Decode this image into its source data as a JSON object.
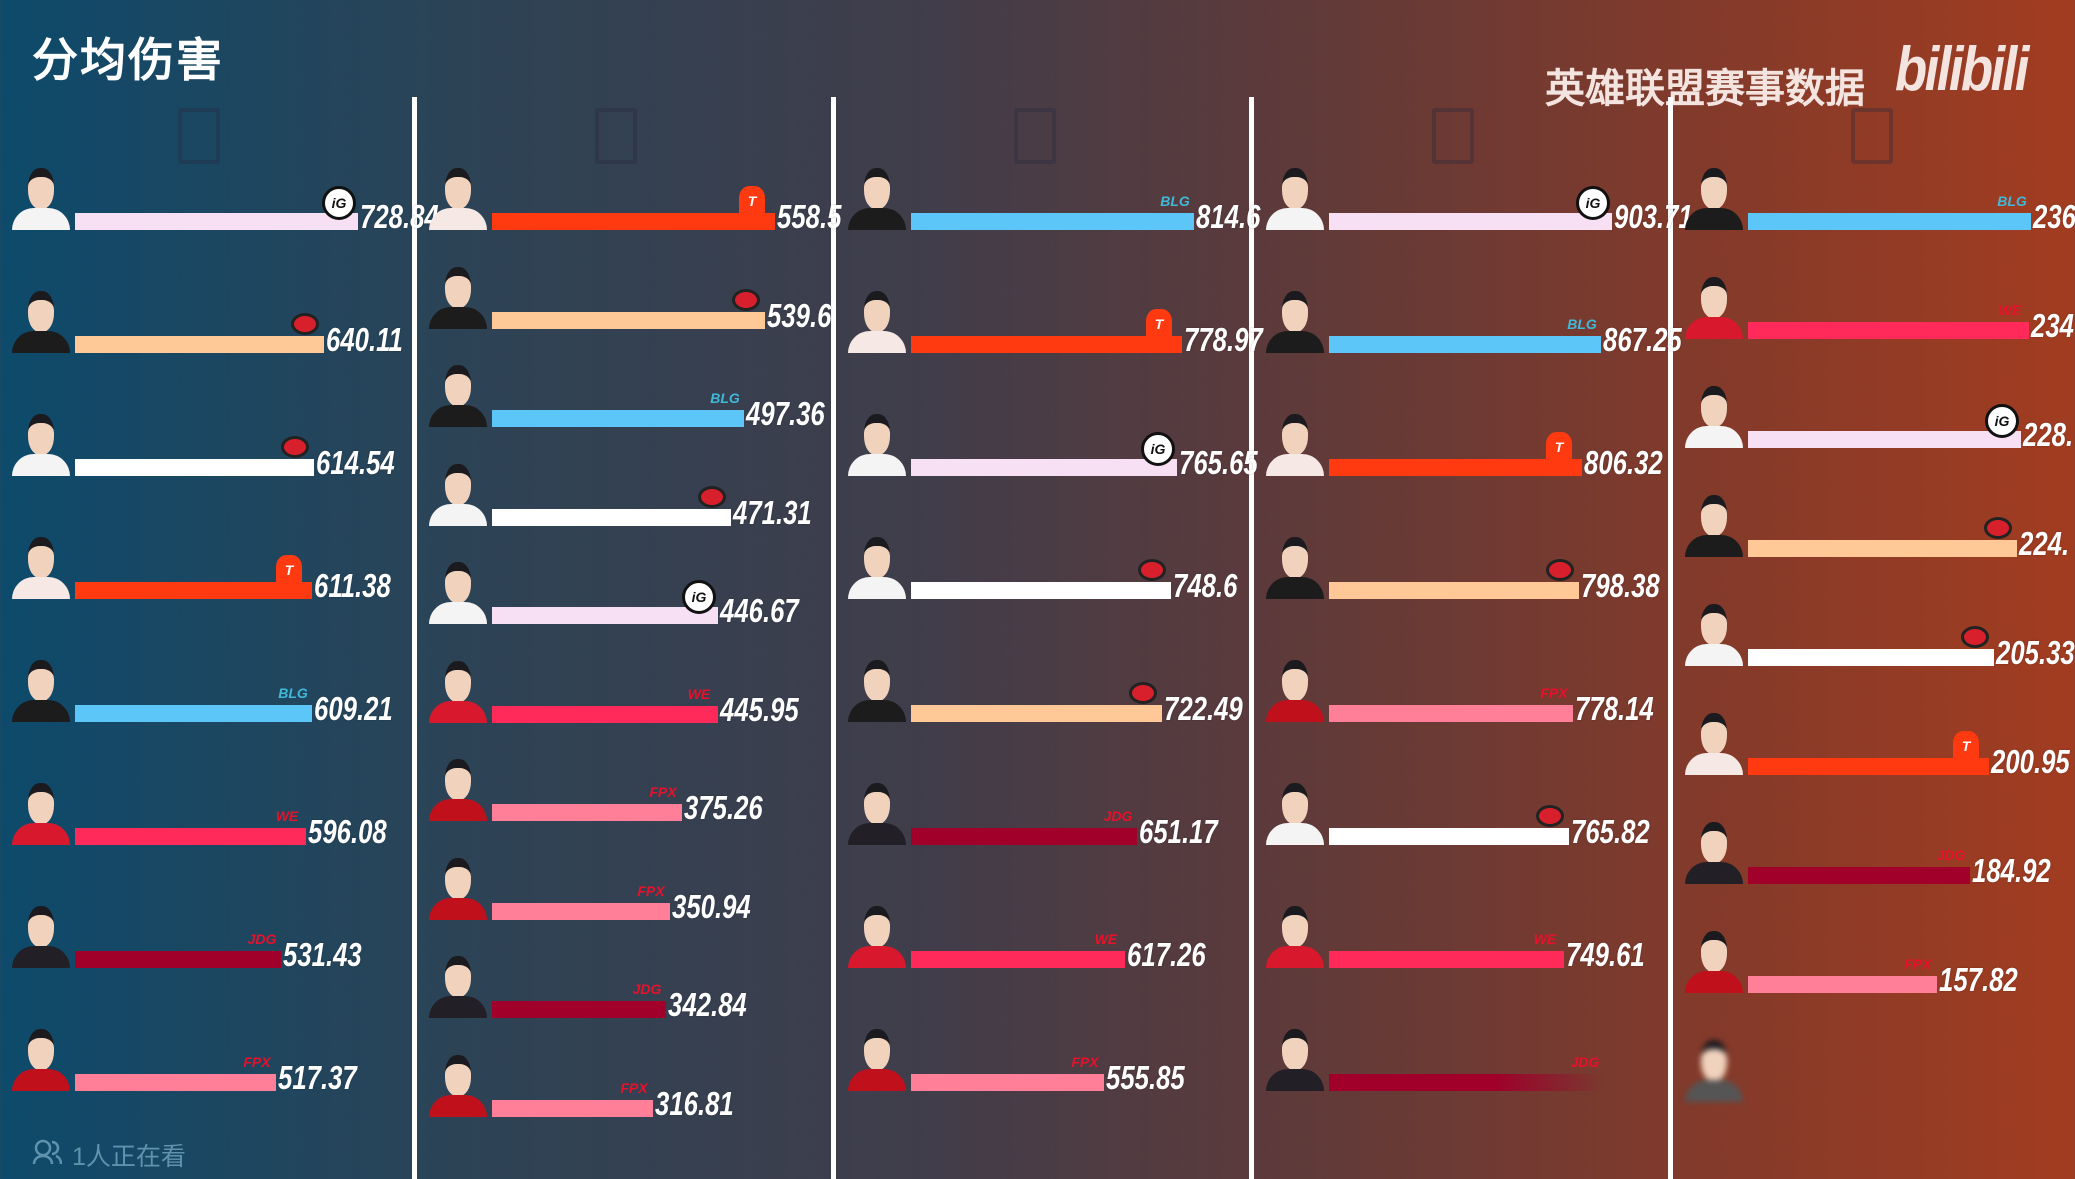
{
  "header": {
    "title": "分均伤害",
    "brand": "英雄联盟赛事数据",
    "logo_text": "bilibili"
  },
  "footer": {
    "viewers": "1人正在看",
    "viewers_icon": "people-icon"
  },
  "team_colors": {
    "ig": "#f8e0f4",
    "al": "#ffc896",
    "wbg": "#ffffff",
    "tes": "#ff3a10",
    "blg": "#5bc6f7",
    "we": "#ff2a5a",
    "jdg": "#a0002a",
    "fpx": "#ff7f98"
  },
  "chart_data": {
    "type": "bar",
    "title": "分均伤害",
    "orientation": "horizontal",
    "panels": [
      {
        "rows": [
          {
            "team": "ig",
            "value": 728.84,
            "label": "728.84"
          },
          {
            "team": "al",
            "value": 640.11,
            "label": "640.11"
          },
          {
            "team": "wbg",
            "value": 614.54,
            "label": "614.54"
          },
          {
            "team": "tes",
            "value": 611.38,
            "label": "611.38"
          },
          {
            "team": "blg",
            "value": 609.21,
            "label": "609.21"
          },
          {
            "team": "we",
            "value": 596.08,
            "label": "596.08"
          },
          {
            "team": "jdg",
            "value": 531.43,
            "label": "531.43"
          },
          {
            "team": "fpx",
            "value": 517.37,
            "label": "517.37"
          }
        ]
      },
      {
        "rows": [
          {
            "team": "tes",
            "value": 558.5,
            "label": "558.5"
          },
          {
            "team": "al",
            "value": 539.6,
            "label": "539.6"
          },
          {
            "team": "blg",
            "value": 497.36,
            "label": "497.36"
          },
          {
            "team": "wbg",
            "value": 471.31,
            "label": "471.31"
          },
          {
            "team": "ig",
            "value": 446.67,
            "label": "446.67"
          },
          {
            "team": "we",
            "value": 445.95,
            "label": "445.95"
          },
          {
            "team": "fpx",
            "value": 375.26,
            "label": "375.26"
          },
          {
            "team": "fpx",
            "value": 350.94,
            "label": "350.94"
          },
          {
            "team": "jdg",
            "value": 342.84,
            "label": "342.84"
          },
          {
            "team": "fpx",
            "value": 316.81,
            "label": "316.81"
          }
        ]
      },
      {
        "rows": [
          {
            "team": "blg",
            "value": 814.6,
            "label": "814.6"
          },
          {
            "team": "tes",
            "value": 778.97,
            "label": "778.97"
          },
          {
            "team": "ig",
            "value": 765.65,
            "label": "765.65"
          },
          {
            "team": "wbg",
            "value": 748.6,
            "label": "748.6"
          },
          {
            "team": "al",
            "value": 722.49,
            "label": "722.49"
          },
          {
            "team": "jdg",
            "value": 651.17,
            "label": "651.17"
          },
          {
            "team": "we",
            "value": 617.26,
            "label": "617.26"
          },
          {
            "team": "fpx",
            "value": 555.85,
            "label": "555.85"
          }
        ]
      },
      {
        "rows": [
          {
            "team": "ig",
            "value": 903.71,
            "label": "903.71"
          },
          {
            "team": "blg",
            "value": 867.25,
            "label": "867.25"
          },
          {
            "team": "tes",
            "value": 806.32,
            "label": "806.32"
          },
          {
            "team": "al",
            "value": 798.38,
            "label": "798.38"
          },
          {
            "team": "fpx",
            "value": 778.14,
            "label": "778.14"
          },
          {
            "team": "wbg",
            "value": 765.82,
            "label": "765.82"
          },
          {
            "team": "we",
            "value": 749.61,
            "label": "749.61"
          },
          {
            "team": "jdg",
            "value": null,
            "label": ""
          }
        ]
      },
      {
        "rows": [
          {
            "team": "blg",
            "value": 236,
            "label": "236"
          },
          {
            "team": "we",
            "value": 234,
            "label": "234"
          },
          {
            "team": "ig",
            "value": 228,
            "label": "228."
          },
          {
            "team": "al",
            "value": 224,
            "label": "224."
          },
          {
            "team": "wbg",
            "value": 205.33,
            "label": "205.33"
          },
          {
            "team": "tes",
            "value": 200.95,
            "label": "200.95"
          },
          {
            "team": "jdg",
            "value": 184.92,
            "label": "184.92"
          },
          {
            "team": "fpx",
            "value": 157.82,
            "label": "157.82"
          },
          {
            "team": "",
            "value": null,
            "label": ""
          }
        ]
      }
    ]
  }
}
